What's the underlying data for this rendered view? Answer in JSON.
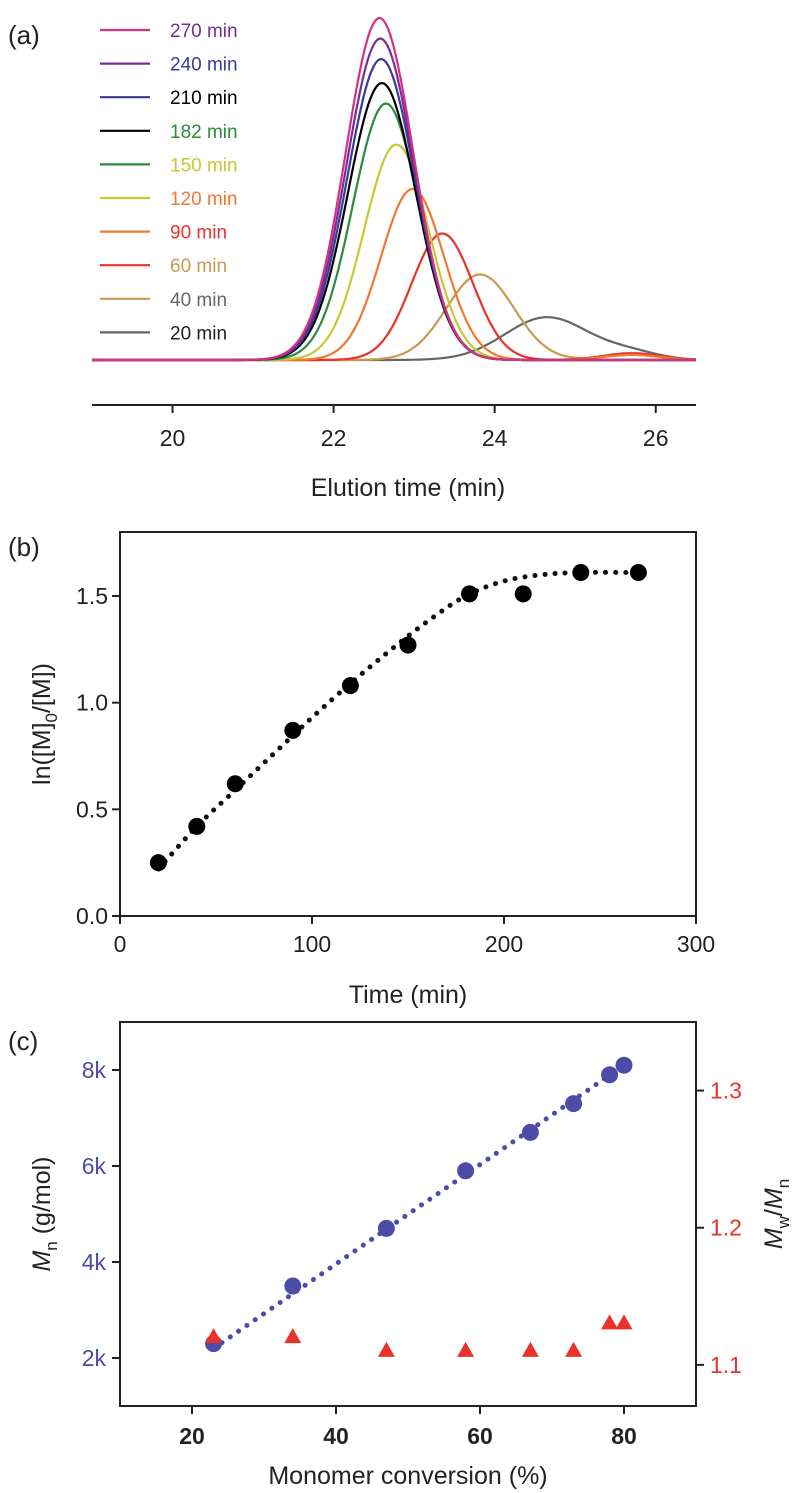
{
  "chart_data": [
    {
      "panel": "(a)",
      "type": "line",
      "xlabel": "Elution time (min)",
      "ylabel": "",
      "xlim": [
        19,
        26.5
      ],
      "xticks": [
        20,
        22,
        24,
        26
      ],
      "legend_position": "top-left",
      "series": [
        {
          "name": "270 min",
          "color": "#d6307f",
          "peak_x": 22.57,
          "peak_y": 1.0,
          "sigma": 0.42,
          "tail": 0.0
        },
        {
          "name": "240 min",
          "color": "#7a2c96",
          "peak_x": 22.58,
          "peak_y": 0.94,
          "sigma": 0.42,
          "tail": 0.0
        },
        {
          "name": "210 min",
          "color": "#3a3a9a",
          "peak_x": 22.59,
          "peak_y": 0.88,
          "sigma": 0.42,
          "tail": 0.0
        },
        {
          "name": "182 min",
          "color": "#000000",
          "peak_x": 22.6,
          "peak_y": 0.81,
          "sigma": 0.42,
          "tail": 0.0
        },
        {
          "name": "150 min",
          "color": "#2e8a3e",
          "peak_x": 22.65,
          "peak_y": 0.75,
          "sigma": 0.41,
          "tail": 0.0
        },
        {
          "name": "120 min",
          "color": "#c8c832",
          "peak_x": 22.78,
          "peak_y": 0.63,
          "sigma": 0.4,
          "tail": 0.0
        },
        {
          "name": "90 min",
          "color": "#f07830",
          "peak_x": 22.98,
          "peak_y": 0.5,
          "sigma": 0.39,
          "tail": 0.015
        },
        {
          "name": "60 min",
          "color": "#e8322a",
          "peak_x": 23.35,
          "peak_y": 0.37,
          "sigma": 0.38,
          "tail": 0.02
        },
        {
          "name": "40 min",
          "color": "#c99a4e",
          "peak_x": 23.82,
          "peak_y": 0.25,
          "sigma": 0.42,
          "tail": 0.015
        },
        {
          "name": "20 min",
          "color": "#666666",
          "peak_x": 24.65,
          "peak_y": 0.125,
          "sigma": 0.52,
          "tail": 0.02
        }
      ]
    },
    {
      "panel": "(b)",
      "type": "scatter",
      "xlabel": "Time (min)",
      "ylabel": "ln([M]0/[M])",
      "ylabel_parts": {
        "pre": "ln([M]",
        "sub": "0",
        "post": "/[M])"
      },
      "xlim": [
        0,
        300
      ],
      "ylim": [
        0,
        1.8
      ],
      "xticks": [
        0,
        100,
        200,
        300
      ],
      "yticks": [
        "0.0",
        "0.5",
        "1.0",
        "1.5"
      ],
      "series": [
        {
          "name": "data",
          "color": "#000000",
          "x": [
            20,
            40,
            60,
            90,
            120,
            150,
            182,
            210,
            240,
            270
          ],
          "y": [
            0.25,
            0.42,
            0.62,
            0.87,
            1.08,
            1.27,
            1.51,
            1.51,
            1.61,
            1.61
          ]
        }
      ],
      "fit": {
        "style": "dotted",
        "x": [
          20,
          40,
          60,
          80,
          100,
          120,
          140,
          160,
          180,
          200,
          220,
          240,
          270
        ],
        "y": [
          0.22,
          0.42,
          0.59,
          0.76,
          0.93,
          1.09,
          1.24,
          1.38,
          1.5,
          1.57,
          1.6,
          1.61,
          1.61
        ]
      }
    },
    {
      "panel": "(c)",
      "type": "scatter",
      "xlabel": "Monomer conversion (%)",
      "ylabel_left": {
        "pre": "M",
        "sub": "n",
        "post": " (g/mol)"
      },
      "ylabel_right": {
        "a": "M",
        "a_sub": "w",
        "mid": "/",
        "b": "M",
        "b_sub": "n"
      },
      "xlim": [
        10,
        90
      ],
      "ylim_left": [
        1000,
        9000
      ],
      "ylim_right": [
        1.07,
        1.35
      ],
      "xticks": [
        20,
        40,
        60,
        80
      ],
      "yticks_left": [
        {
          "v": 2000,
          "t": "2k"
        },
        {
          "v": 4000,
          "t": "4k"
        },
        {
          "v": 6000,
          "t": "6k"
        },
        {
          "v": 8000,
          "t": "8k"
        }
      ],
      "yticks_right": [
        {
          "v": 1.1,
          "t": "1.1"
        },
        {
          "v": 1.2,
          "t": "1.2"
        },
        {
          "v": 1.3,
          "t": "1.3"
        }
      ],
      "colors": {
        "left": "#4b4ba8",
        "right": "#e8322a"
      },
      "series": [
        {
          "name": "Mn",
          "axis": "left",
          "marker": "circle",
          "x": [
            23,
            34,
            47,
            58,
            67,
            73,
            78,
            80
          ],
          "y": [
            2300,
            3500,
            4700,
            5900,
            6700,
            7300,
            7900,
            8100
          ]
        },
        {
          "name": "Mw/Mn",
          "axis": "right",
          "marker": "triangle",
          "x": [
            23,
            34,
            47,
            58,
            67,
            73,
            78,
            80
          ],
          "y": [
            1.12,
            1.12,
            1.11,
            1.11,
            1.11,
            1.11,
            1.13,
            1.13
          ]
        }
      ],
      "fit": {
        "style": "dotted",
        "axis": "left",
        "x": [
          23,
          80
        ],
        "y": [
          2200,
          8100
        ]
      }
    }
  ]
}
